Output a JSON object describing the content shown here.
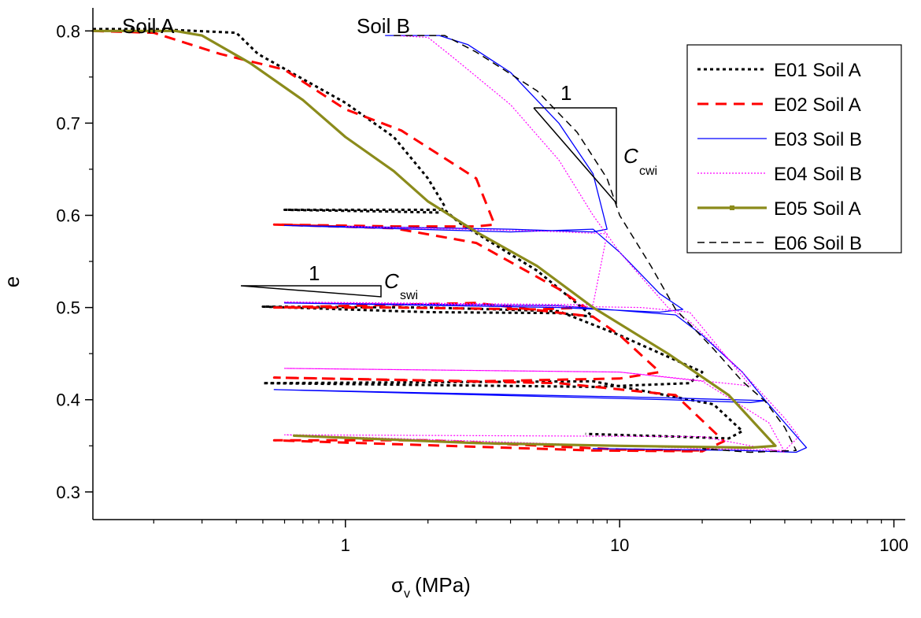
{
  "chart_data": {
    "type": "line",
    "xlabel": "σ",
    "xlabel_sub": "v",
    "xlabel_unit": "(MPa)",
    "ylabel": "e",
    "x_scale": "log",
    "xlim": [
      0.12,
      110
    ],
    "ylim": [
      0.27,
      0.825
    ],
    "x_tick_labels": [
      {
        "value": 1,
        "label": "1"
      },
      {
        "value": 10,
        "label": "10"
      },
      {
        "value": 100,
        "label": "100"
      }
    ],
    "y_ticks": [
      0.3,
      0.4,
      0.5,
      0.6,
      0.7,
      0.8
    ],
    "y_tick_labels": [
      "0.3",
      "0.4",
      "0.5",
      "0.6",
      "0.7",
      "0.8"
    ],
    "grid": false,
    "legend_position": "top-right",
    "annotations": {
      "soil_a": {
        "text": "Soil A"
      },
      "soil_b": {
        "text": "Soil B"
      },
      "cwi_one": {
        "text": "1"
      },
      "cwi_c": {
        "text": "C"
      },
      "cwi_sub": {
        "text": "cwi"
      },
      "swi_one": {
        "text": "1"
      },
      "swi_c": {
        "text": "C"
      },
      "swi_sub": {
        "text": "swi"
      }
    },
    "series": [
      {
        "name": "E01 Soil A",
        "color": "#000000",
        "style": "dotted",
        "points": [
          [
            0.12,
            0.802
          ],
          [
            0.2,
            0.802
          ],
          [
            0.4,
            0.798
          ],
          [
            0.48,
            0.775
          ],
          [
            1.0,
            0.722
          ],
          [
            1.5,
            0.685
          ],
          [
            2.0,
            0.64
          ],
          [
            2.3,
            0.61
          ],
          [
            2.2,
            0.603
          ],
          [
            1.5,
            0.604
          ],
          [
            0.6,
            0.606
          ],
          [
            2.3,
            0.606
          ],
          [
            2.6,
            0.592
          ],
          [
            5.0,
            0.54
          ],
          [
            8.0,
            0.49
          ],
          [
            6.0,
            0.494
          ],
          [
            2.0,
            0.495
          ],
          [
            0.5,
            0.501
          ],
          [
            2.0,
            0.5
          ],
          [
            6.0,
            0.496
          ],
          [
            10.0,
            0.47
          ],
          [
            20.0,
            0.43
          ],
          [
            18.0,
            0.418
          ],
          [
            8.0,
            0.414
          ],
          [
            0.5,
            0.418
          ],
          [
            8.0,
            0.42
          ],
          [
            22.0,
            0.395
          ],
          [
            28.0,
            0.366
          ],
          [
            25.0,
            0.358
          ],
          [
            16.0,
            0.36
          ],
          [
            7.5,
            0.363
          ]
        ]
      },
      {
        "name": "E02 Soil A",
        "color": "#ff0000",
        "style": "dashed",
        "points": [
          [
            0.12,
            0.8
          ],
          [
            0.2,
            0.798
          ],
          [
            0.35,
            0.775
          ],
          [
            0.6,
            0.758
          ],
          [
            1.0,
            0.715
          ],
          [
            1.6,
            0.692
          ],
          [
            3.0,
            0.64
          ],
          [
            3.5,
            0.59
          ],
          [
            3.0,
            0.588
          ],
          [
            1.5,
            0.588
          ],
          [
            0.55,
            0.59
          ],
          [
            1.5,
            0.586
          ],
          [
            3.0,
            0.57
          ],
          [
            6.0,
            0.52
          ],
          [
            7.5,
            0.5
          ],
          [
            5.0,
            0.498
          ],
          [
            1.5,
            0.5
          ],
          [
            0.55,
            0.5
          ],
          [
            3.0,
            0.505
          ],
          [
            8.0,
            0.49
          ],
          [
            10.0,
            0.47
          ],
          [
            14.0,
            0.43
          ],
          [
            10.0,
            0.423
          ],
          [
            3.0,
            0.42
          ],
          [
            0.55,
            0.424
          ],
          [
            6.0,
            0.418
          ],
          [
            16.0,
            0.405
          ],
          [
            24.0,
            0.355
          ],
          [
            20.0,
            0.344
          ],
          [
            8.0,
            0.345
          ],
          [
            0.55,
            0.356
          ],
          [
            2.0,
            0.356
          ],
          [
            10.0,
            0.346
          ],
          [
            20.0,
            0.345
          ]
        ]
      },
      {
        "name": "E03 Soil B",
        "color": "#0000ff",
        "style": "solid",
        "points": [
          [
            1.4,
            0.795
          ],
          [
            2.2,
            0.795
          ],
          [
            2.8,
            0.785
          ],
          [
            4.0,
            0.755
          ],
          [
            6.0,
            0.7
          ],
          [
            8.0,
            0.645
          ],
          [
            9.0,
            0.585
          ],
          [
            8.0,
            0.582
          ],
          [
            4.0,
            0.585
          ],
          [
            0.6,
            0.589
          ],
          [
            4.0,
            0.582
          ],
          [
            8.0,
            0.585
          ],
          [
            10.0,
            0.56
          ],
          [
            14.0,
            0.515
          ],
          [
            17.0,
            0.498
          ],
          [
            14.0,
            0.495
          ],
          [
            6.0,
            0.5
          ],
          [
            0.6,
            0.505
          ],
          [
            6.0,
            0.502
          ],
          [
            16.0,
            0.492
          ],
          [
            20.0,
            0.47
          ],
          [
            28.0,
            0.43
          ],
          [
            34.0,
            0.399
          ],
          [
            30.0,
            0.397
          ],
          [
            15.0,
            0.4
          ],
          [
            0.55,
            0.411
          ],
          [
            15.0,
            0.402
          ],
          [
            34.0,
            0.399
          ],
          [
            40.0,
            0.375
          ],
          [
            48.0,
            0.348
          ],
          [
            44.0,
            0.343
          ],
          [
            28.0,
            0.345
          ],
          [
            8.0,
            0.347
          ]
        ]
      },
      {
        "name": "E04 Soil B",
        "color": "#ff00ff",
        "style": "dotted-fine",
        "points": [
          [
            1.5,
            0.795
          ],
          [
            2.0,
            0.793
          ],
          [
            2.5,
            0.77
          ],
          [
            4.0,
            0.72
          ],
          [
            6.0,
            0.66
          ],
          [
            8.0,
            0.6
          ],
          [
            10.0,
            0.56
          ],
          [
            15.0,
            0.5
          ],
          [
            18.0,
            0.485
          ],
          [
            28.0,
            0.43
          ],
          [
            40.0,
            0.38
          ],
          [
            45.0,
            0.36
          ],
          [
            40.0,
            0.345
          ],
          [
            20.0,
            0.347
          ],
          [
            0.6,
            0.362
          ],
          [
            20.0,
            0.36
          ],
          [
            40.0,
            0.343
          ],
          [
            35.0,
            0.375
          ],
          [
            20.0,
            0.42
          ],
          [
            10.0,
            0.43
          ],
          [
            0.6,
            0.434
          ],
          [
            10.0,
            0.43
          ],
          [
            30.0,
            0.415
          ],
          [
            18.0,
            0.495
          ],
          [
            12.0,
            0.5
          ],
          [
            0.6,
            0.506
          ],
          [
            8.0,
            0.503
          ],
          [
            9.0,
            0.58
          ],
          [
            5.0,
            0.583
          ],
          [
            1.0,
            0.588
          ]
        ]
      },
      {
        "name": "E05 Soil A",
        "color": "#8b8b1b",
        "style": "solid-thick",
        "points": [
          [
            0.12,
            0.8
          ],
          [
            0.24,
            0.8
          ],
          [
            0.3,
            0.795
          ],
          [
            0.45,
            0.765
          ],
          [
            0.7,
            0.725
          ],
          [
            1.0,
            0.685
          ],
          [
            1.5,
            0.648
          ],
          [
            2.0,
            0.615
          ],
          [
            3.0,
            0.582
          ],
          [
            5.0,
            0.545
          ],
          [
            8.0,
            0.5
          ],
          [
            15.0,
            0.45
          ],
          [
            25.0,
            0.405
          ],
          [
            37.0,
            0.35
          ],
          [
            30.0,
            0.348
          ],
          [
            10.0,
            0.35
          ],
          [
            3.0,
            0.353
          ],
          [
            0.65,
            0.361
          ]
        ]
      },
      {
        "name": "E06 Soil B",
        "color": "#000000",
        "style": "dashed",
        "points": [
          [
            1.5,
            0.795
          ],
          [
            2.3,
            0.795
          ],
          [
            3.0,
            0.777
          ],
          [
            5.0,
            0.735
          ],
          [
            7.0,
            0.69
          ],
          [
            9.0,
            0.64
          ],
          [
            10.0,
            0.6
          ],
          [
            13.0,
            0.545
          ],
          [
            16.0,
            0.498
          ],
          [
            22.0,
            0.455
          ],
          [
            28.0,
            0.42
          ],
          [
            34.0,
            0.398
          ],
          [
            40.0,
            0.37
          ],
          [
            44.0,
            0.345
          ],
          [
            30.0,
            0.343
          ],
          [
            20.0,
            0.347
          ]
        ]
      }
    ]
  }
}
